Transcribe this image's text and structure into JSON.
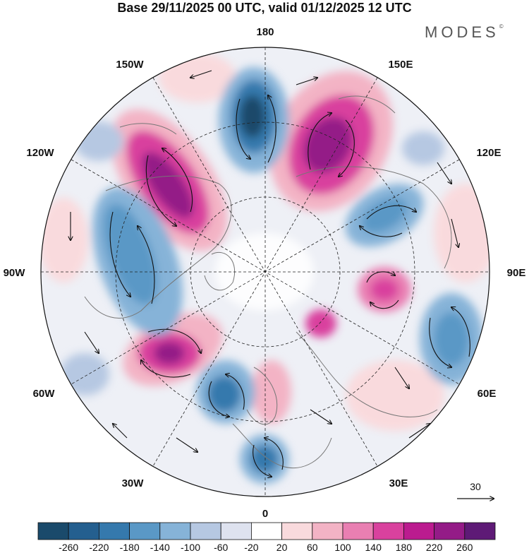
{
  "title": "Base 29/11/2025 00 UTC, valid 01/12/2025 12 UTC",
  "brand": "MODES",
  "brand_mark": "©",
  "longitude_labels": {
    "top": "180",
    "top_left": "150W",
    "top_right": "150E",
    "upper_left": "120W",
    "upper_right": "120E",
    "left": "90W",
    "right": "90E",
    "lower_left": "60W",
    "lower_right": "60E",
    "bottom_left": "30W",
    "bottom_right": "30E",
    "bottom": "0"
  },
  "vector_reference": "30",
  "colorbar": {
    "ticks": [
      "-260",
      "-220",
      "-180",
      "-140",
      "-100",
      "-60",
      "-20",
      "20",
      "60",
      "100",
      "140",
      "180",
      "220",
      "260"
    ],
    "colors": [
      "#1a4a6b",
      "#245f8f",
      "#3579ad",
      "#5a98c6",
      "#86b3d8",
      "#b6c8e2",
      "#dee2ef",
      "#ffffff",
      "#f9dadd",
      "#f3b3c5",
      "#e97fb2",
      "#d9419e",
      "#bb1b8f",
      "#941b87",
      "#5e1a76"
    ]
  },
  "colors": {
    "positive": "#d9419e",
    "negative": "#3579ad",
    "land": "#888888"
  }
}
